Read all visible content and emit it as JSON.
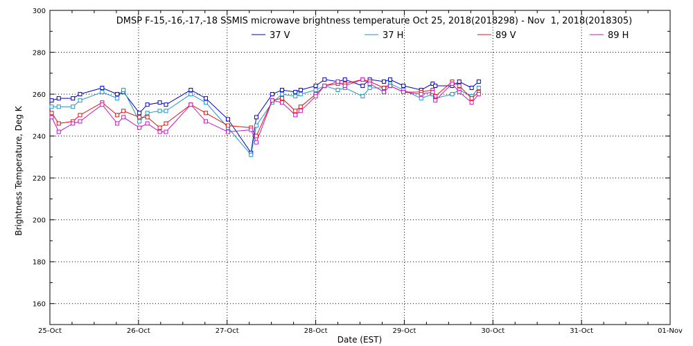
{
  "chart_data": {
    "type": "line",
    "title": "DMSP F-15,-16,-17,-18 SSMIS microwave brightness temperature Oct 25, 2018(2018298) - Nov  1, 2018(2018305)",
    "xlabel": "Date (EST)",
    "ylabel": "Brightness Temperature, Deg K",
    "x_ticks": [
      "25-Oct",
      "26-Oct",
      "27-Oct",
      "28-Oct",
      "29-Oct",
      "30-Oct",
      "31-Oct",
      "01-Nov"
    ],
    "xlim": [
      0,
      7
    ],
    "ylim": [
      150,
      300
    ],
    "y_ticks": [
      160,
      180,
      200,
      220,
      240,
      260,
      280,
      300
    ],
    "grid": true,
    "legend_position": "top-center",
    "x": [
      0.02,
      0.1,
      0.26,
      0.34,
      0.59,
      0.76,
      0.83,
      1.01,
      1.1,
      1.24,
      1.31,
      1.59,
      1.76,
      2.01,
      2.27,
      2.33,
      2.51,
      2.62,
      2.77,
      2.83,
      3.0,
      3.1,
      3.25,
      3.33,
      3.53,
      3.61,
      3.77,
      3.84,
      3.99,
      4.19,
      4.32,
      4.35,
      4.54,
      4.62,
      4.76,
      4.84
    ],
    "series": [
      {
        "name": "37 V",
        "color": "#0000c8",
        "values": [
          257,
          258,
          258,
          260,
          263,
          260,
          261,
          251,
          255,
          256,
          255,
          262,
          258,
          248,
          232,
          249,
          260,
          262,
          261,
          262,
          264,
          267,
          266,
          267,
          264,
          267,
          266,
          267,
          264,
          262,
          265,
          264,
          264,
          266,
          263,
          266
        ]
      },
      {
        "name": "37 H",
        "color": "#1e96c8",
        "values": [
          254,
          254,
          254,
          257,
          261,
          258,
          262,
          247,
          251,
          252,
          252,
          260,
          256,
          244,
          231,
          245,
          256,
          260,
          259,
          260,
          262,
          264,
          262,
          263,
          259,
          263,
          263,
          265,
          262,
          258,
          260,
          258,
          260,
          262,
          259,
          263
        ]
      },
      {
        "name": "89 V",
        "color": "#dc1414",
        "values": [
          251,
          246,
          247,
          250,
          256,
          250,
          252,
          249,
          249,
          244,
          246,
          255,
          251,
          245,
          244,
          240,
          257,
          258,
          252,
          254,
          260,
          264,
          265,
          265,
          267,
          266,
          263,
          264,
          261,
          261,
          262,
          259,
          266,
          264,
          258,
          261
        ]
      },
      {
        "name": "89 H",
        "color": "#c814c8",
        "values": [
          249,
          242,
          246,
          247,
          255,
          246,
          249,
          244,
          246,
          242,
          242,
          255,
          247,
          242,
          243,
          237,
          257,
          256,
          250,
          252,
          259,
          264,
          266,
          264,
          267,
          265,
          261,
          264,
          261,
          260,
          261,
          257,
          265,
          261,
          256,
          260
        ]
      }
    ]
  }
}
